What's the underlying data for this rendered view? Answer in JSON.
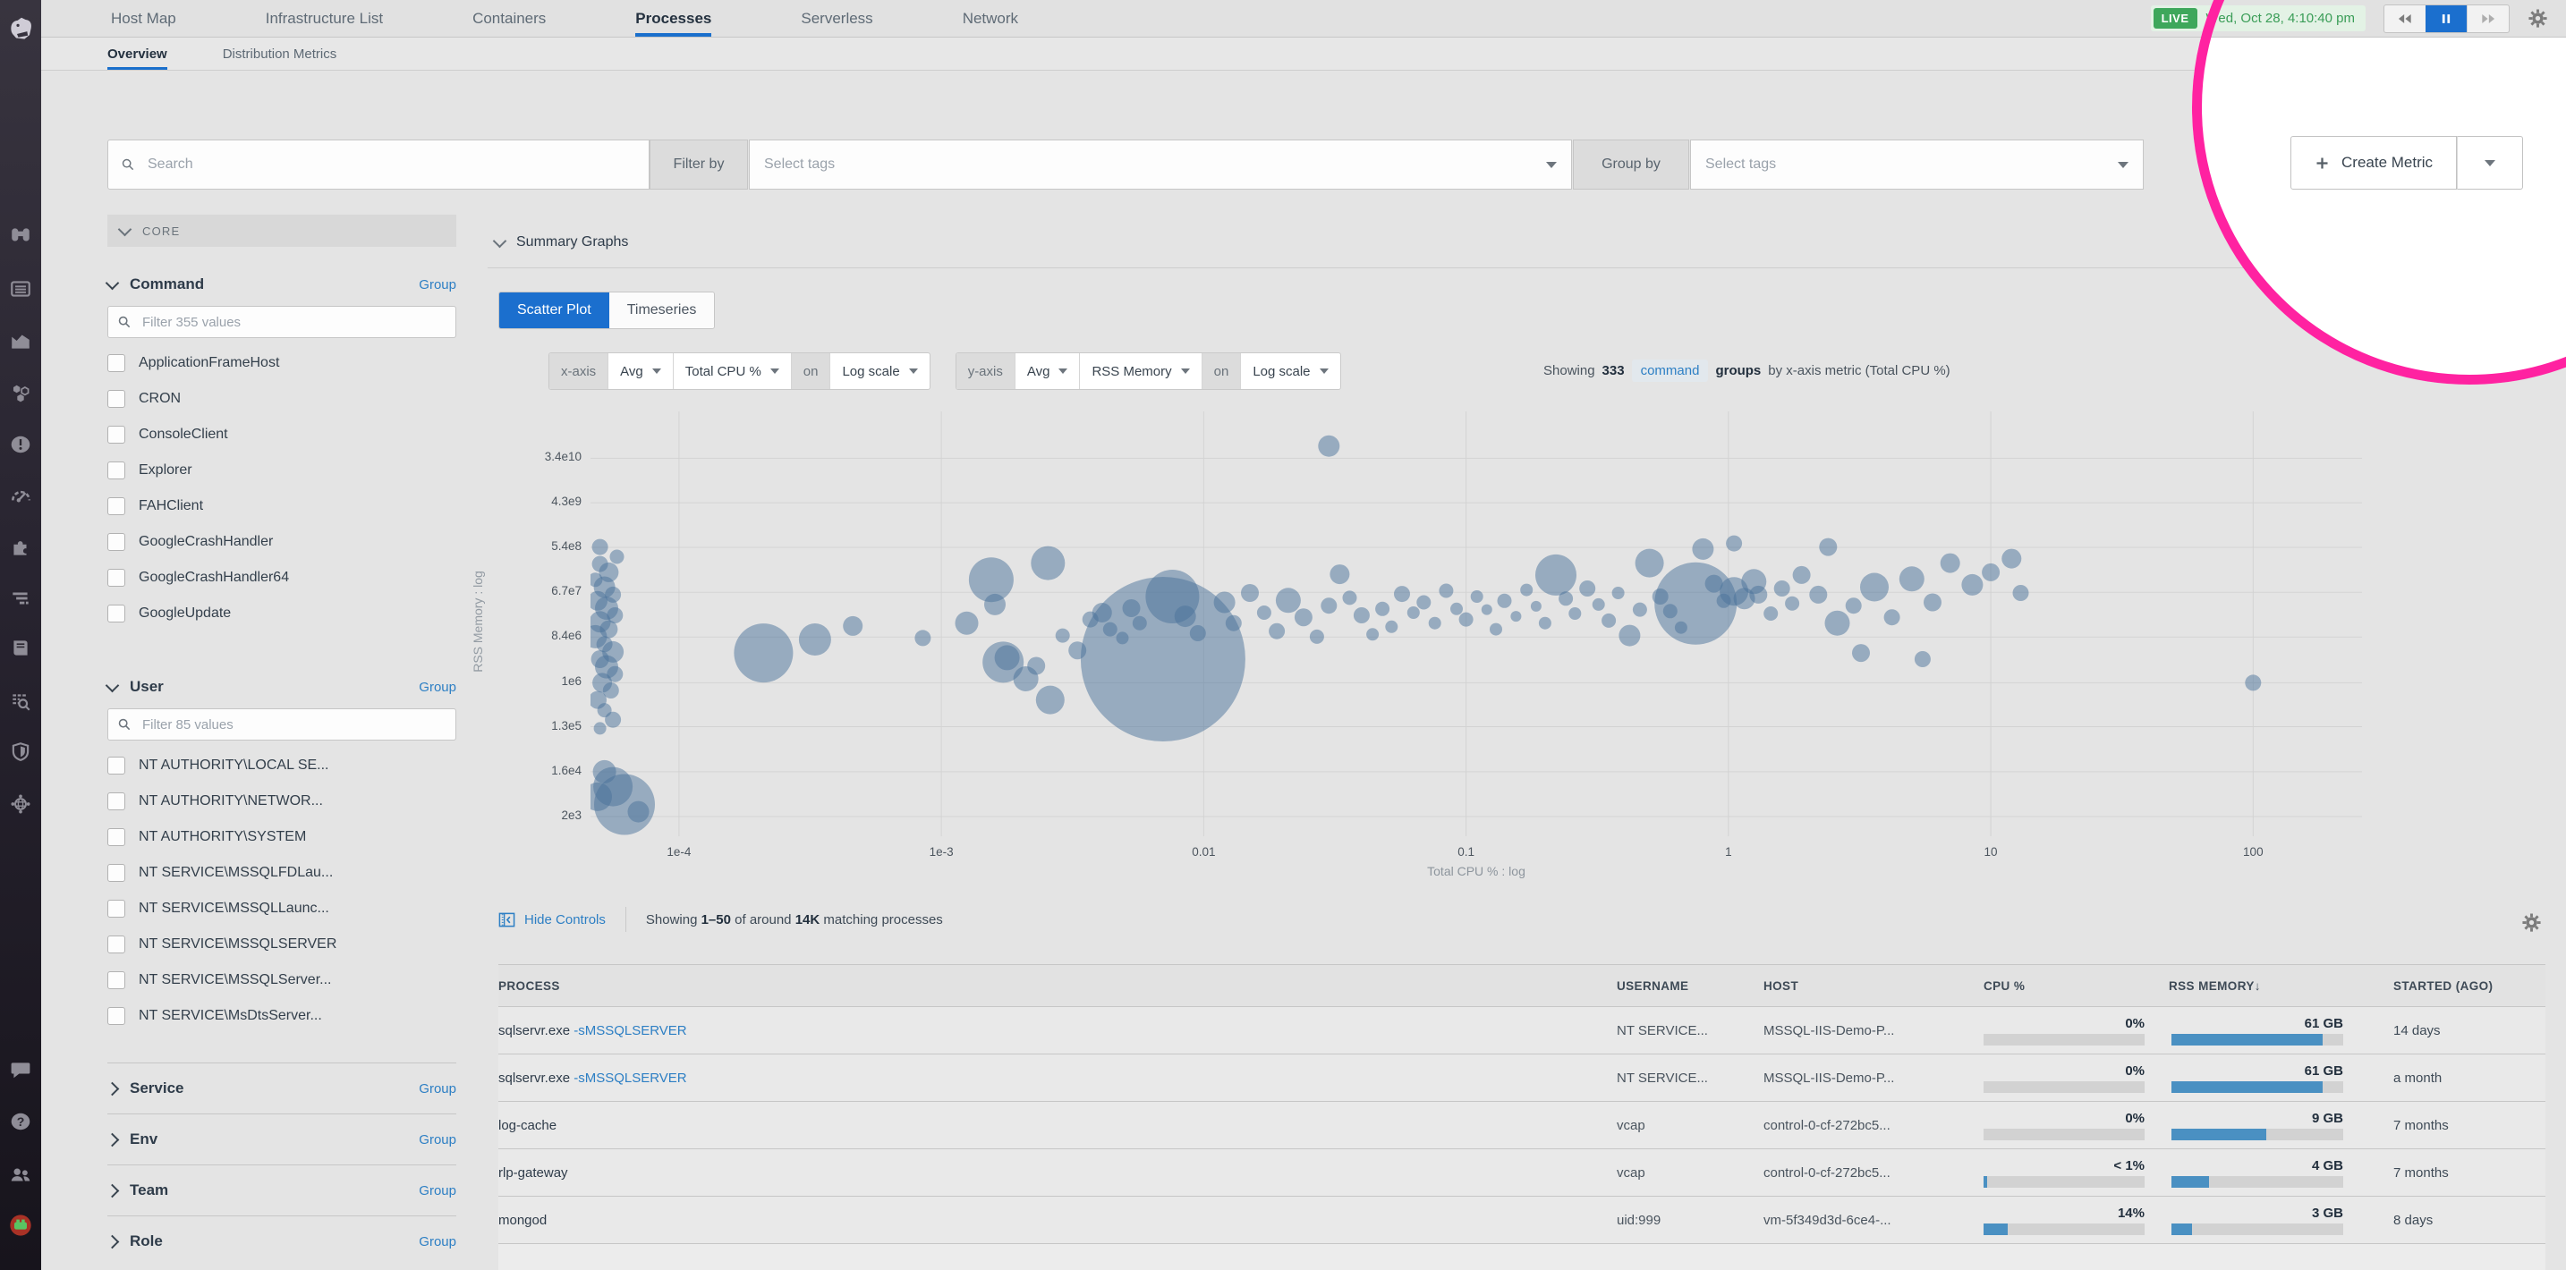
{
  "nav": {
    "items": [
      "Host Map",
      "Infrastructure List",
      "Containers",
      "Processes",
      "Serverless",
      "Network"
    ],
    "active": "Processes",
    "live_badge": "LIVE",
    "datetime": "Wed, Oct 28, 4:10:40 pm"
  },
  "tabs": {
    "items": [
      "Overview",
      "Distribution Metrics"
    ],
    "active": "Overview"
  },
  "toolbar": {
    "search_placeholder": "Search",
    "filter_by_label": "Filter by",
    "filter_tags_placeholder": "Select tags",
    "group_by_label": "Group by",
    "group_tags_placeholder": "Select tags",
    "create_metric_label": "Create Metric"
  },
  "sidebar": {
    "core_label": "CORE",
    "command": {
      "title": "Command",
      "group_label": "Group",
      "filter_placeholder": "Filter 355 values",
      "items": [
        "ApplicationFrameHost",
        "CRON",
        "ConsoleClient",
        "Explorer",
        "FAHClient",
        "GoogleCrashHandler",
        "GoogleCrashHandler64",
        "GoogleUpdate"
      ]
    },
    "user": {
      "title": "User",
      "group_label": "Group",
      "filter_placeholder": "Filter 85 values",
      "items": [
        "NT AUTHORITY\\LOCAL SE...",
        "NT AUTHORITY\\NETWOR...",
        "NT AUTHORITY\\SYSTEM",
        "NT SERVICE\\MSSQLFDLau...",
        "NT SERVICE\\MSSQLLaunc...",
        "NT SERVICE\\MSSQLSERVER",
        "NT SERVICE\\MSSQLServer...",
        "NT SERVICE\\MsDtsServer..."
      ]
    },
    "collapsed_sections": [
      {
        "title": "Service",
        "group_label": "Group"
      },
      {
        "title": "Env",
        "group_label": "Group"
      },
      {
        "title": "Team",
        "group_label": "Group"
      },
      {
        "title": "Role",
        "group_label": "Group"
      }
    ]
  },
  "summary": {
    "title": "Summary Graphs",
    "toggles": [
      "Scatter Plot",
      "Timeseries"
    ],
    "active_toggle": "Scatter Plot",
    "x_controls": {
      "chip": "x-axis",
      "agg": "Avg",
      "metric": "Total CPU %",
      "on": "on",
      "scale": "Log scale"
    },
    "y_controls": {
      "chip": "y-axis",
      "agg": "Avg",
      "metric": "RSS Memory",
      "on": "on",
      "scale": "Log scale"
    },
    "showing": {
      "prefix": "Showing",
      "count": "333",
      "tag": "command",
      "groups_word": "groups",
      "rest": "by x-axis metric (Total CPU %)"
    }
  },
  "chart_data": {
    "type": "scatter",
    "subtype": "bubble",
    "xlabel": "Total CPU % : log",
    "ylabel": "RSS Memory : log",
    "x_scale": "log",
    "y_scale": "log",
    "grid": true,
    "x_range": [
      4.6e-05,
      260
    ],
    "y_range": [
      800,
      300000000000.0
    ],
    "x_ticks": [
      {
        "label": "1e-4",
        "value": 0.0001
      },
      {
        "label": "1e-3",
        "value": 0.001
      },
      {
        "label": "0.01",
        "value": 0.01
      },
      {
        "label": "0.1",
        "value": 0.1
      },
      {
        "label": "1",
        "value": 1
      },
      {
        "label": "10",
        "value": 10
      },
      {
        "label": "100",
        "value": 100
      }
    ],
    "y_ticks": [
      {
        "label": "3.4e10",
        "value": 34000000000.0
      },
      {
        "label": "4.3e9",
        "value": 4300000000.0
      },
      {
        "label": "5.4e8",
        "value": 540000000.0
      },
      {
        "label": "6.7e7",
        "value": 67000000.0
      },
      {
        "label": "8.4e6",
        "value": 8400000.0
      },
      {
        "label": "1e6",
        "value": 1000000.0
      },
      {
        "label": "1.3e5",
        "value": 130000.0
      },
      {
        "label": "1.6e4",
        "value": 16000.0
      },
      {
        "label": "2e3",
        "value": 2000.0
      }
    ],
    "bubble_color": "#4a7299",
    "bubble_opacity": 0.5,
    "bubbles": [
      [
        5e-05,
        550000000.0,
        9
      ],
      [
        5.8e-05,
        350000000.0,
        8
      ],
      [
        5e-05,
        250000000.0,
        9
      ],
      [
        5.4e-05,
        170000000.0,
        11
      ],
      [
        4.8e-05,
        120000000.0,
        8
      ],
      [
        5.2e-05,
        85000000.0,
        12
      ],
      [
        5.6e-05,
        60000000.0,
        9
      ],
      [
        4.9e-05,
        45000000.0,
        11
      ],
      [
        5.3e-05,
        32000000.0,
        13
      ],
      [
        5.7e-05,
        23000000.0,
        9
      ],
      [
        5e-05,
        17000000.0,
        12
      ],
      [
        5.4e-05,
        12000000.0,
        10
      ],
      [
        4.8e-05,
        8500000.0,
        13
      ],
      [
        5.2e-05,
        6000000.0,
        9
      ],
      [
        5.6e-05,
        4200000.0,
        12
      ],
      [
        5e-05,
        3000000.0,
        10
      ],
      [
        5.3e-05,
        2100000.0,
        13
      ],
      [
        5.7e-05,
        1500000.0,
        9
      ],
      [
        5.1e-05,
        1000000.0,
        11
      ],
      [
        5.5e-05,
        700000.0,
        9
      ],
      [
        4.9e-05,
        450000.0,
        10
      ],
      [
        5.2e-05,
        280000.0,
        8
      ],
      [
        5.6e-05,
        180000.0,
        9
      ],
      [
        5e-05,
        120000.0,
        7
      ],
      [
        5.2e-05,
        16000.0,
        13
      ],
      [
        5.6e-05,
        8000.0,
        22
      ],
      [
        6.2e-05,
        3500.0,
        34
      ],
      [
        4.9e-05,
        5000.0,
        16
      ],
      [
        7e-05,
        2500.0,
        12
      ],
      [
        0.00021,
        4000000.0,
        33
      ],
      [
        0.00033,
        7500000.0,
        18
      ],
      [
        0.00046,
        14000000.0,
        11
      ],
      [
        0.00085,
        8000000.0,
        9
      ],
      [
        0.00125,
        16000000.0,
        13
      ],
      [
        0.00155,
        120000000.0,
        25
      ],
      [
        0.0016,
        38000000.0,
        12
      ],
      [
        0.00172,
        2600000.0,
        23
      ],
      [
        0.00178,
        3200000.0,
        14
      ],
      [
        0.0021,
        1200000.0,
        14
      ],
      [
        0.0023,
        2200000.0,
        10
      ],
      [
        0.00255,
        260000000.0,
        19
      ],
      [
        0.0026,
        450000.0,
        16
      ],
      [
        0.0029,
        9000000.0,
        8
      ],
      [
        0.0033,
        4500000.0,
        10
      ],
      [
        0.0037,
        19000000.0,
        9
      ],
      [
        0.0041,
        26000000.0,
        11
      ],
      [
        0.0044,
        12000000.0,
        8
      ],
      [
        0.0049,
        8000000.0,
        7
      ],
      [
        0.0053,
        32000000.0,
        10
      ],
      [
        0.0057,
        16000000.0,
        8
      ],
      [
        0.007,
        3000000.0,
        92
      ],
      [
        0.0076,
        55000000.0,
        30
      ],
      [
        0.0085,
        22000000.0,
        12
      ],
      [
        0.0095,
        10000000.0,
        9
      ],
      [
        0.03,
        60000000000.0,
        12
      ],
      [
        0.012,
        42000000.0,
        12
      ],
      [
        0.013,
        16000000.0,
        9
      ],
      [
        0.015,
        65000000.0,
        10
      ],
      [
        0.017,
        26000000.0,
        8
      ],
      [
        0.019,
        11000000.0,
        9
      ],
      [
        0.021,
        46000000.0,
        14
      ],
      [
        0.024,
        21000000.0,
        10
      ],
      [
        0.027,
        8500000.0,
        8
      ],
      [
        0.03,
        36000000.0,
        9
      ],
      [
        0.033,
        155000000.0,
        11
      ],
      [
        0.036,
        52000000.0,
        8
      ],
      [
        0.04,
        23000000.0,
        9
      ],
      [
        0.044,
        9500000.0,
        7
      ],
      [
        0.048,
        31000000.0,
        8
      ],
      [
        0.052,
        13500000.0,
        7
      ],
      [
        0.057,
        62000000.0,
        9
      ],
      [
        0.063,
        26000000.0,
        7
      ],
      [
        0.069,
        42000000.0,
        8
      ],
      [
        0.076,
        16000000.0,
        7
      ],
      [
        0.084,
        72000000.0,
        8
      ],
      [
        0.092,
        31000000.0,
        7
      ],
      [
        0.1,
        19000000.0,
        8
      ],
      [
        0.11,
        55000000.0,
        7
      ],
      [
        0.12,
        30000000.0,
        6
      ],
      [
        0.13,
        12000000.0,
        7
      ],
      [
        0.14,
        45000000.0,
        8
      ],
      [
        0.155,
        22000000.0,
        6
      ],
      [
        0.17,
        75000000.0,
        7
      ],
      [
        0.185,
        35000000.0,
        6
      ],
      [
        0.2,
        16000000.0,
        7
      ],
      [
        0.22,
        150000000.0,
        23
      ],
      [
        0.24,
        50000000.0,
        8
      ],
      [
        0.26,
        25000000.0,
        7
      ],
      [
        0.29,
        80000000.0,
        9
      ],
      [
        0.32,
        38000000.0,
        7
      ],
      [
        0.35,
        18000000.0,
        8
      ],
      [
        0.38,
        65000000.0,
        7
      ],
      [
        0.42,
        9000000.0,
        12
      ],
      [
        0.46,
        30000000.0,
        8
      ],
      [
        0.5,
        260000000.0,
        16
      ],
      [
        0.55,
        55000000.0,
        9
      ],
      [
        0.6,
        28000000.0,
        8
      ],
      [
        0.66,
        13000000.0,
        7
      ],
      [
        0.75,
        40000000.0,
        46
      ],
      [
        0.8,
        500000000.0,
        12
      ],
      [
        0.88,
        100000000.0,
        10
      ],
      [
        0.96,
        45000000.0,
        8
      ],
      [
        1.05,
        650000000.0,
        9
      ],
      [
        1.05,
        70000000.0,
        16
      ],
      [
        1.15,
        50000000.0,
        12
      ],
      [
        1.25,
        110000000.0,
        14
      ],
      [
        1.3,
        60000000.0,
        10
      ],
      [
        1.45,
        25000000.0,
        8
      ],
      [
        1.6,
        80000000.0,
        9
      ],
      [
        1.75,
        40000000.0,
        8
      ],
      [
        1.9,
        150000000.0,
        10
      ],
      [
        2.2,
        60000000.0,
        10
      ],
      [
        2.4,
        550000000.0,
        10
      ],
      [
        2.6,
        16000000.0,
        14
      ],
      [
        3.0,
        36000000.0,
        9
      ],
      [
        3.2,
        4000000.0,
        10
      ],
      [
        3.6,
        85000000.0,
        16
      ],
      [
        4.2,
        21000000.0,
        9
      ],
      [
        5.0,
        125000000.0,
        14
      ],
      [
        5.5,
        3000000.0,
        9
      ],
      [
        6.0,
        42000000.0,
        10
      ],
      [
        7.0,
        260000000.0,
        11
      ],
      [
        8.5,
        95000000.0,
        12
      ],
      [
        10,
        170000000.0,
        10
      ],
      [
        12,
        320000000.0,
        11
      ],
      [
        13,
        65000000.0,
        9
      ],
      [
        100,
        1000000.0,
        9
      ]
    ]
  },
  "processes": {
    "hide_controls_label": "Hide Controls",
    "showing_prefix": "Showing",
    "range": "1–50",
    "of_around": "of around",
    "count": "14K",
    "suffix": "matching processes",
    "columns": [
      "PROCESS",
      "USERNAME",
      "HOST",
      "CPU %",
      "RSS MEMORY",
      "STARTED (AGO)"
    ],
    "sort_column": "RSS MEMORY",
    "sort_arrow": "↓",
    "rows": [
      {
        "process": "sqlservr.exe",
        "process_arg": "-sMSSQLSERVER",
        "username": "NT SERVICE...",
        "host": "MSSQL-IIS-Demo-P...",
        "cpu": "0%",
        "cpu_fill": 0,
        "rss": "61 GB",
        "rss_fill": 88,
        "started": "14 days"
      },
      {
        "process": "sqlservr.exe",
        "process_arg": "-sMSSQLSERVER",
        "username": "NT SERVICE...",
        "host": "MSSQL-IIS-Demo-P...",
        "cpu": "0%",
        "cpu_fill": 0,
        "rss": "61 GB",
        "rss_fill": 88,
        "started": "a month"
      },
      {
        "process": "log-cache",
        "process_arg": "",
        "username": "vcap",
        "host": "control-0-cf-272bc5...",
        "cpu": "0%",
        "cpu_fill": 0,
        "rss": "9 GB",
        "rss_fill": 55,
        "started": "7 months"
      },
      {
        "process": "rlp-gateway",
        "process_arg": "",
        "username": "vcap",
        "host": "control-0-cf-272bc5...",
        "cpu": "< 1%",
        "cpu_fill": 2,
        "rss": "4 GB",
        "rss_fill": 22,
        "started": "7 months"
      },
      {
        "process": "mongod",
        "process_arg": "",
        "username": "uid:999",
        "host": "vm-5f349d3d-6ce4-...",
        "cpu": "14%",
        "cpu_fill": 15,
        "rss": "3 GB",
        "rss_fill": 12,
        "started": "8 days"
      }
    ]
  },
  "rail": {
    "icons": [
      "datadog-logo",
      "watchdog-binoculars-icon",
      "events-list-icon",
      "metrics-chart-icon",
      "infrastructure-hexagons-icon",
      "monitors-alert-icon",
      "synthetics-gauge-icon",
      "integrations-puzzle-icon",
      "apm-traces-icon",
      "notebooks-icon",
      "logs-search-icon",
      "security-shield-icon",
      "network-globe-icon",
      "chat-bubble-icon",
      "help-icon",
      "users-icon",
      "user-avatar"
    ]
  },
  "annotation": {
    "shape": "circle",
    "color": "#ff22a1"
  }
}
